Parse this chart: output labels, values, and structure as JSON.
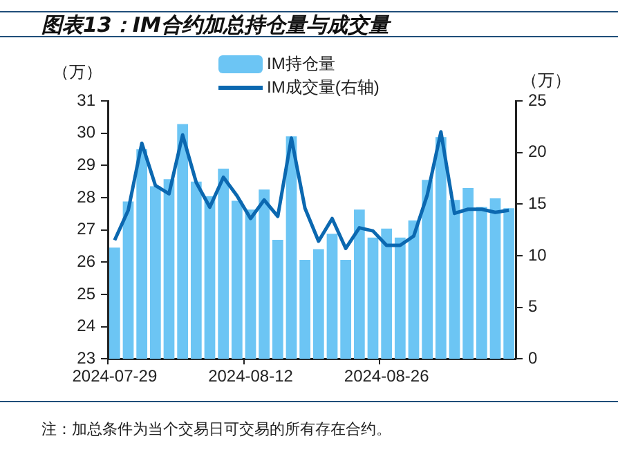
{
  "chart_data": {
    "type": "bar",
    "title": "图表13：IM合约加总持仓量与成交量",
    "ylabel": "（万）",
    "y2label": "（万）",
    "annotations": [
      "注：加总条件为当个交易日可交易的所有存在合约。"
    ],
    "categories": [
      "2024-07-29",
      null,
      null,
      null,
      null,
      null,
      null,
      null,
      null,
      null,
      "2024-08-12",
      null,
      null,
      null,
      null,
      null,
      null,
      null,
      null,
      null,
      "2024-08-26",
      null,
      null,
      null,
      null,
      null,
      null,
      null,
      null,
      null
    ],
    "series": [
      {
        "name": "IM持仓量",
        "color": "#6cc5f4",
        "values": [
          26.45,
          27.88,
          29.5,
          28.35,
          28.57,
          30.28,
          28.5,
          28.04,
          28.9,
          27.9,
          27.63,
          28.25,
          26.69,
          29.9,
          26.07,
          26.4,
          26.88,
          26.07,
          27.63,
          26.76,
          27.04,
          26.76,
          27.29,
          28.55,
          29.88,
          27.93,
          28.3,
          27.71,
          27.98,
          27.67
        ]
      },
      {
        "name": "IM成交量(右轴)",
        "type": "line",
        "axis": "y2",
        "color": "#0b68b0",
        "values": [
          11.5,
          14.4,
          20.9,
          16.8,
          16.0,
          21.7,
          17.1,
          14.7,
          17.6,
          15.8,
          13.6,
          15.4,
          13.8,
          21.4,
          14.6,
          11.4,
          13.6,
          10.7,
          12.7,
          12.4,
          11.0,
          11.0,
          11.9,
          15.9,
          22.0,
          14.1,
          14.5,
          14.5,
          14.2,
          14.4
        ]
      }
    ],
    "ylim": [
      23,
      31
    ],
    "yticks": [
      23,
      24,
      25,
      26,
      27,
      28,
      29,
      30,
      31
    ],
    "y2lim": [
      0,
      25
    ],
    "y2ticks": [
      0,
      5,
      10,
      15,
      20,
      25
    ],
    "legend": "top",
    "grid": false
  }
}
